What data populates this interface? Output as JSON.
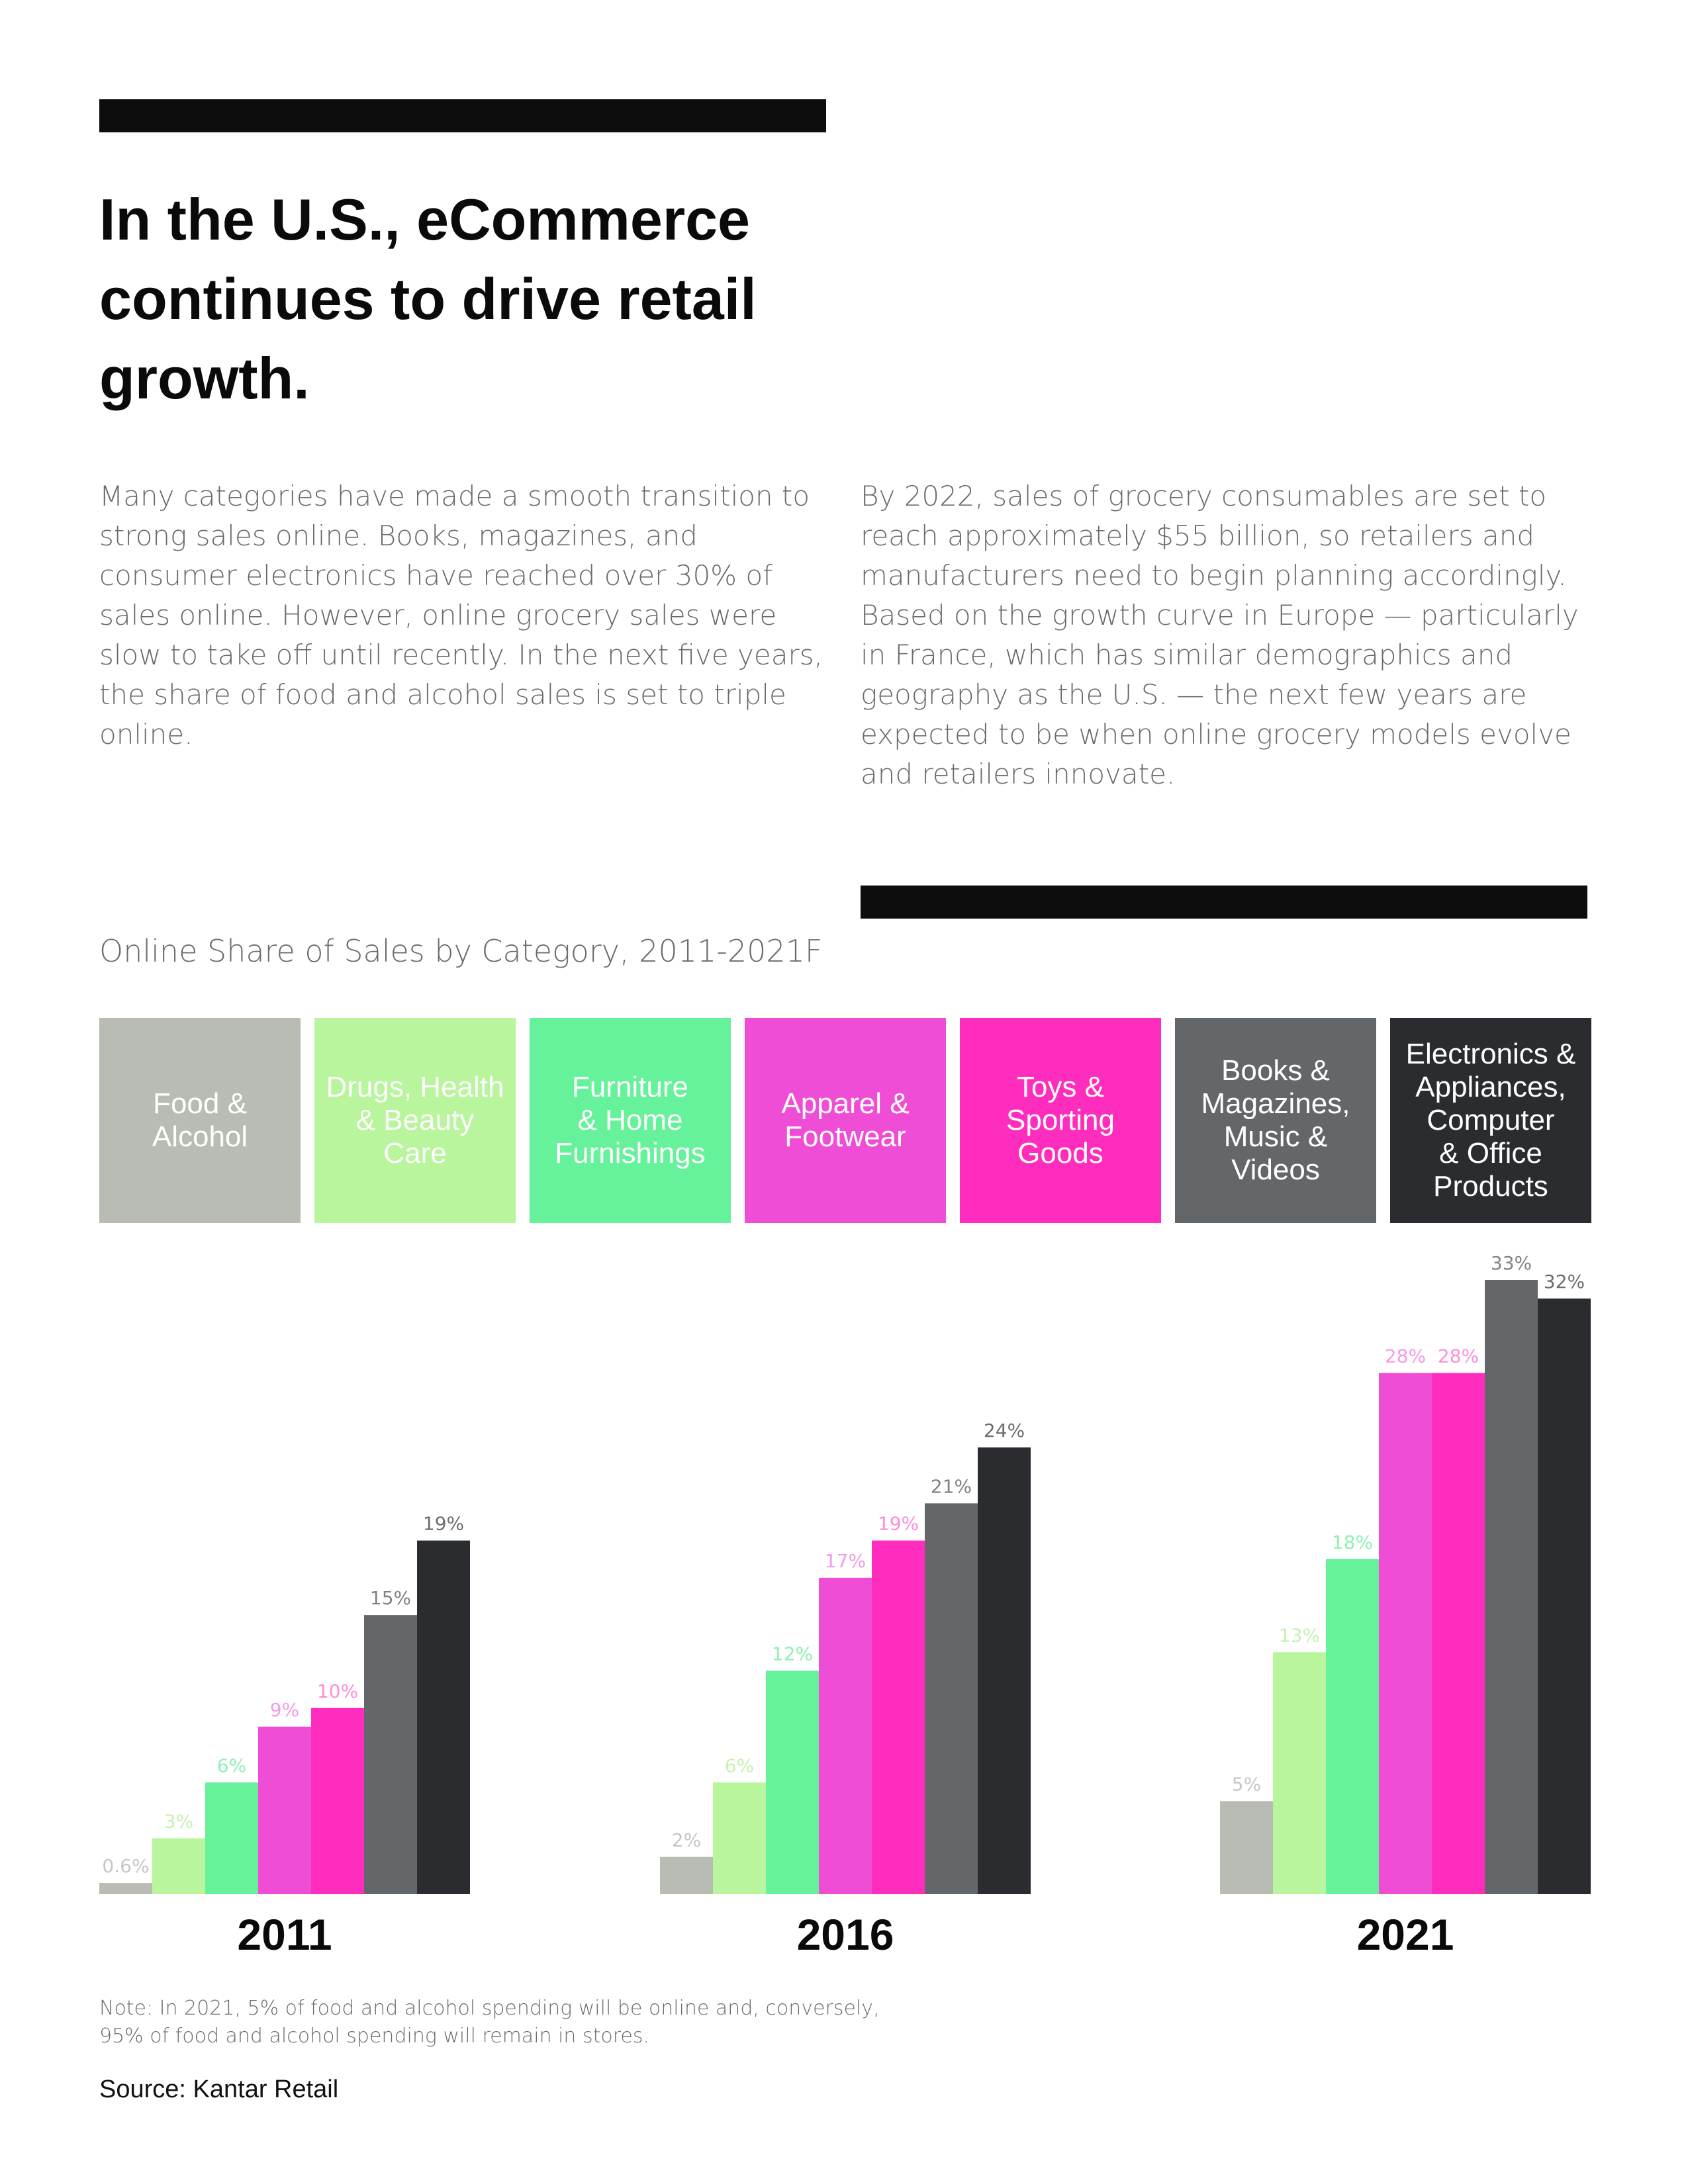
{
  "headline": "In the U.S., eCommerce continues to drive retail growth.",
  "paragraph_left": "Many categories have made a smooth transition to strong sales online. Books, magazines, and consumer electronics have reached over 30% of sales online. However, online grocery sales were slow to take off until recently. In the next five years, the share of food and alcohol sales is set to triple online.",
  "paragraph_right": "By 2022, sales of grocery consumables are set to reach approximately $55 billion, so retailers and manufacturers need to begin planning accordingly. Based on the growth curve in Europe — particularly in France, which has similar demographics and geography as the U.S. — the next few years are expected to be when online grocery models evolve and retailers innovate.",
  "note": "Note: In 2021, 5% of food and alcohol spending will be online and, conversely, 95% of food and alcohol spending will remain in stores.",
  "source": "Source: Kantar Retail",
  "chart_data": {
    "type": "bar",
    "title": "Online Share of Sales by Category, 2011-2021F",
    "categories": [
      "2011",
      "2016",
      "2021"
    ],
    "legend_position": "top",
    "grid": false,
    "ylim": [
      0,
      33
    ],
    "series": [
      {
        "name": "Food & Alcohol",
        "color": "#b8bcb5",
        "label_color": "#c4c7c2",
        "values": [
          0.6,
          2,
          5
        ],
        "labels": [
          "0.6%",
          "2%",
          "5%"
        ]
      },
      {
        "name": "Drugs, Health & Beauty Care",
        "color": "#b8f59c",
        "label_color": "#c6f2b0",
        "values": [
          3,
          6,
          13
        ],
        "labels": [
          "3%",
          "6%",
          "13%"
        ]
      },
      {
        "name": "Furniture & Home Furnishings",
        "color": "#66f29a",
        "label_color": "#8ff0b4",
        "values": [
          6,
          12,
          18
        ],
        "labels": [
          "6%",
          "12%",
          "18%"
        ]
      },
      {
        "name": "Apparel & Footwear",
        "color": "#f04dd6",
        "label_color": "#f59ae6",
        "values": [
          9,
          17,
          28
        ],
        "labels": [
          "9%",
          "17%",
          "28%"
        ]
      },
      {
        "name": "Toys & Sporting Goods",
        "color": "#ff2dbe",
        "label_color": "#ff8ed8",
        "values": [
          10,
          19,
          28
        ],
        "labels": [
          "10%",
          "19%",
          "28%"
        ]
      },
      {
        "name": "Books & Magazines, Music & Videos",
        "color": "#646769",
        "label_color": "#808283",
        "values": [
          15,
          21,
          33
        ],
        "labels": [
          "15%",
          "21%",
          "33%"
        ]
      },
      {
        "name": "Electronics & Appliances, Computer & Office Products",
        "color": "#2a2c2f",
        "label_color": "#6b6d6f",
        "values": [
          19,
          24,
          32
        ],
        "labels": [
          "19%",
          "24%",
          "32%"
        ]
      }
    ]
  },
  "legend_lines": [
    [
      "Food &",
      "Alcohol"
    ],
    [
      "Drugs, Health",
      "& Beauty",
      "Care"
    ],
    [
      "Furniture",
      "& Home",
      "Furnishings"
    ],
    [
      "Apparel &",
      "Footwear"
    ],
    [
      "Toys &",
      "Sporting",
      "Goods"
    ],
    [
      "Books &",
      "Magazines,",
      "Music &",
      "Videos"
    ],
    [
      "Electronics &",
      "Appliances,",
      "Computer",
      "& Office",
      "Products"
    ]
  ]
}
